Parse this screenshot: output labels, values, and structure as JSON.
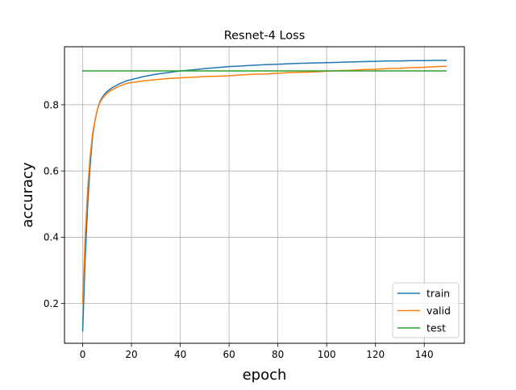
{
  "chart_data": {
    "type": "line",
    "title": "Resnet-4 Loss",
    "xlabel": "epoch",
    "ylabel": "accuracy",
    "xlim": [
      -7.45,
      156.45
    ],
    "ylim": [
      0.08,
      0.975
    ],
    "xticks": [
      0,
      20,
      40,
      60,
      80,
      100,
      120,
      140
    ],
    "yticks": [
      0.2,
      0.4,
      0.6,
      0.8
    ],
    "grid": true,
    "legend_position": "lower-right",
    "series": [
      {
        "name": "train",
        "color": "#1f77b4",
        "x": [
          0,
          1,
          2,
          3,
          4,
          5,
          6,
          7,
          8,
          9,
          10,
          12,
          15,
          18,
          20,
          25,
          30,
          35,
          40,
          45,
          50,
          55,
          60,
          65,
          70,
          75,
          80,
          85,
          90,
          95,
          100,
          105,
          110,
          115,
          120,
          125,
          130,
          135,
          140,
          145,
          149
        ],
        "values": [
          0.117,
          0.33,
          0.49,
          0.61,
          0.7,
          0.75,
          0.785,
          0.808,
          0.822,
          0.832,
          0.84,
          0.851,
          0.863,
          0.872,
          0.876,
          0.885,
          0.892,
          0.897,
          0.902,
          0.905,
          0.909,
          0.912,
          0.915,
          0.917,
          0.919,
          0.921,
          0.922,
          0.924,
          0.925,
          0.926,
          0.927,
          0.928,
          0.929,
          0.93,
          0.931,
          0.932,
          0.932,
          0.933,
          0.933,
          0.934,
          0.934
        ]
      },
      {
        "name": "valid",
        "color": "#ff7f0e",
        "x": [
          0,
          1,
          2,
          3,
          4,
          5,
          6,
          7,
          8,
          9,
          10,
          12,
          15,
          18,
          20,
          25,
          30,
          35,
          40,
          45,
          50,
          55,
          60,
          65,
          70,
          75,
          80,
          85,
          90,
          95,
          100,
          105,
          110,
          115,
          120,
          125,
          130,
          135,
          140,
          145,
          149
        ],
        "values": [
          0.2,
          0.4,
          0.54,
          0.64,
          0.71,
          0.75,
          0.785,
          0.805,
          0.818,
          0.827,
          0.835,
          0.845,
          0.856,
          0.864,
          0.867,
          0.872,
          0.876,
          0.879,
          0.881,
          0.883,
          0.885,
          0.886,
          0.887,
          0.89,
          0.892,
          0.893,
          0.895,
          0.897,
          0.898,
          0.899,
          0.901,
          0.903,
          0.904,
          0.906,
          0.907,
          0.909,
          0.91,
          0.912,
          0.913,
          0.915,
          0.916
        ]
      },
      {
        "name": "test",
        "color": "#2ca02c",
        "x": [
          0,
          149
        ],
        "values": [
          0.902,
          0.902
        ]
      }
    ]
  }
}
